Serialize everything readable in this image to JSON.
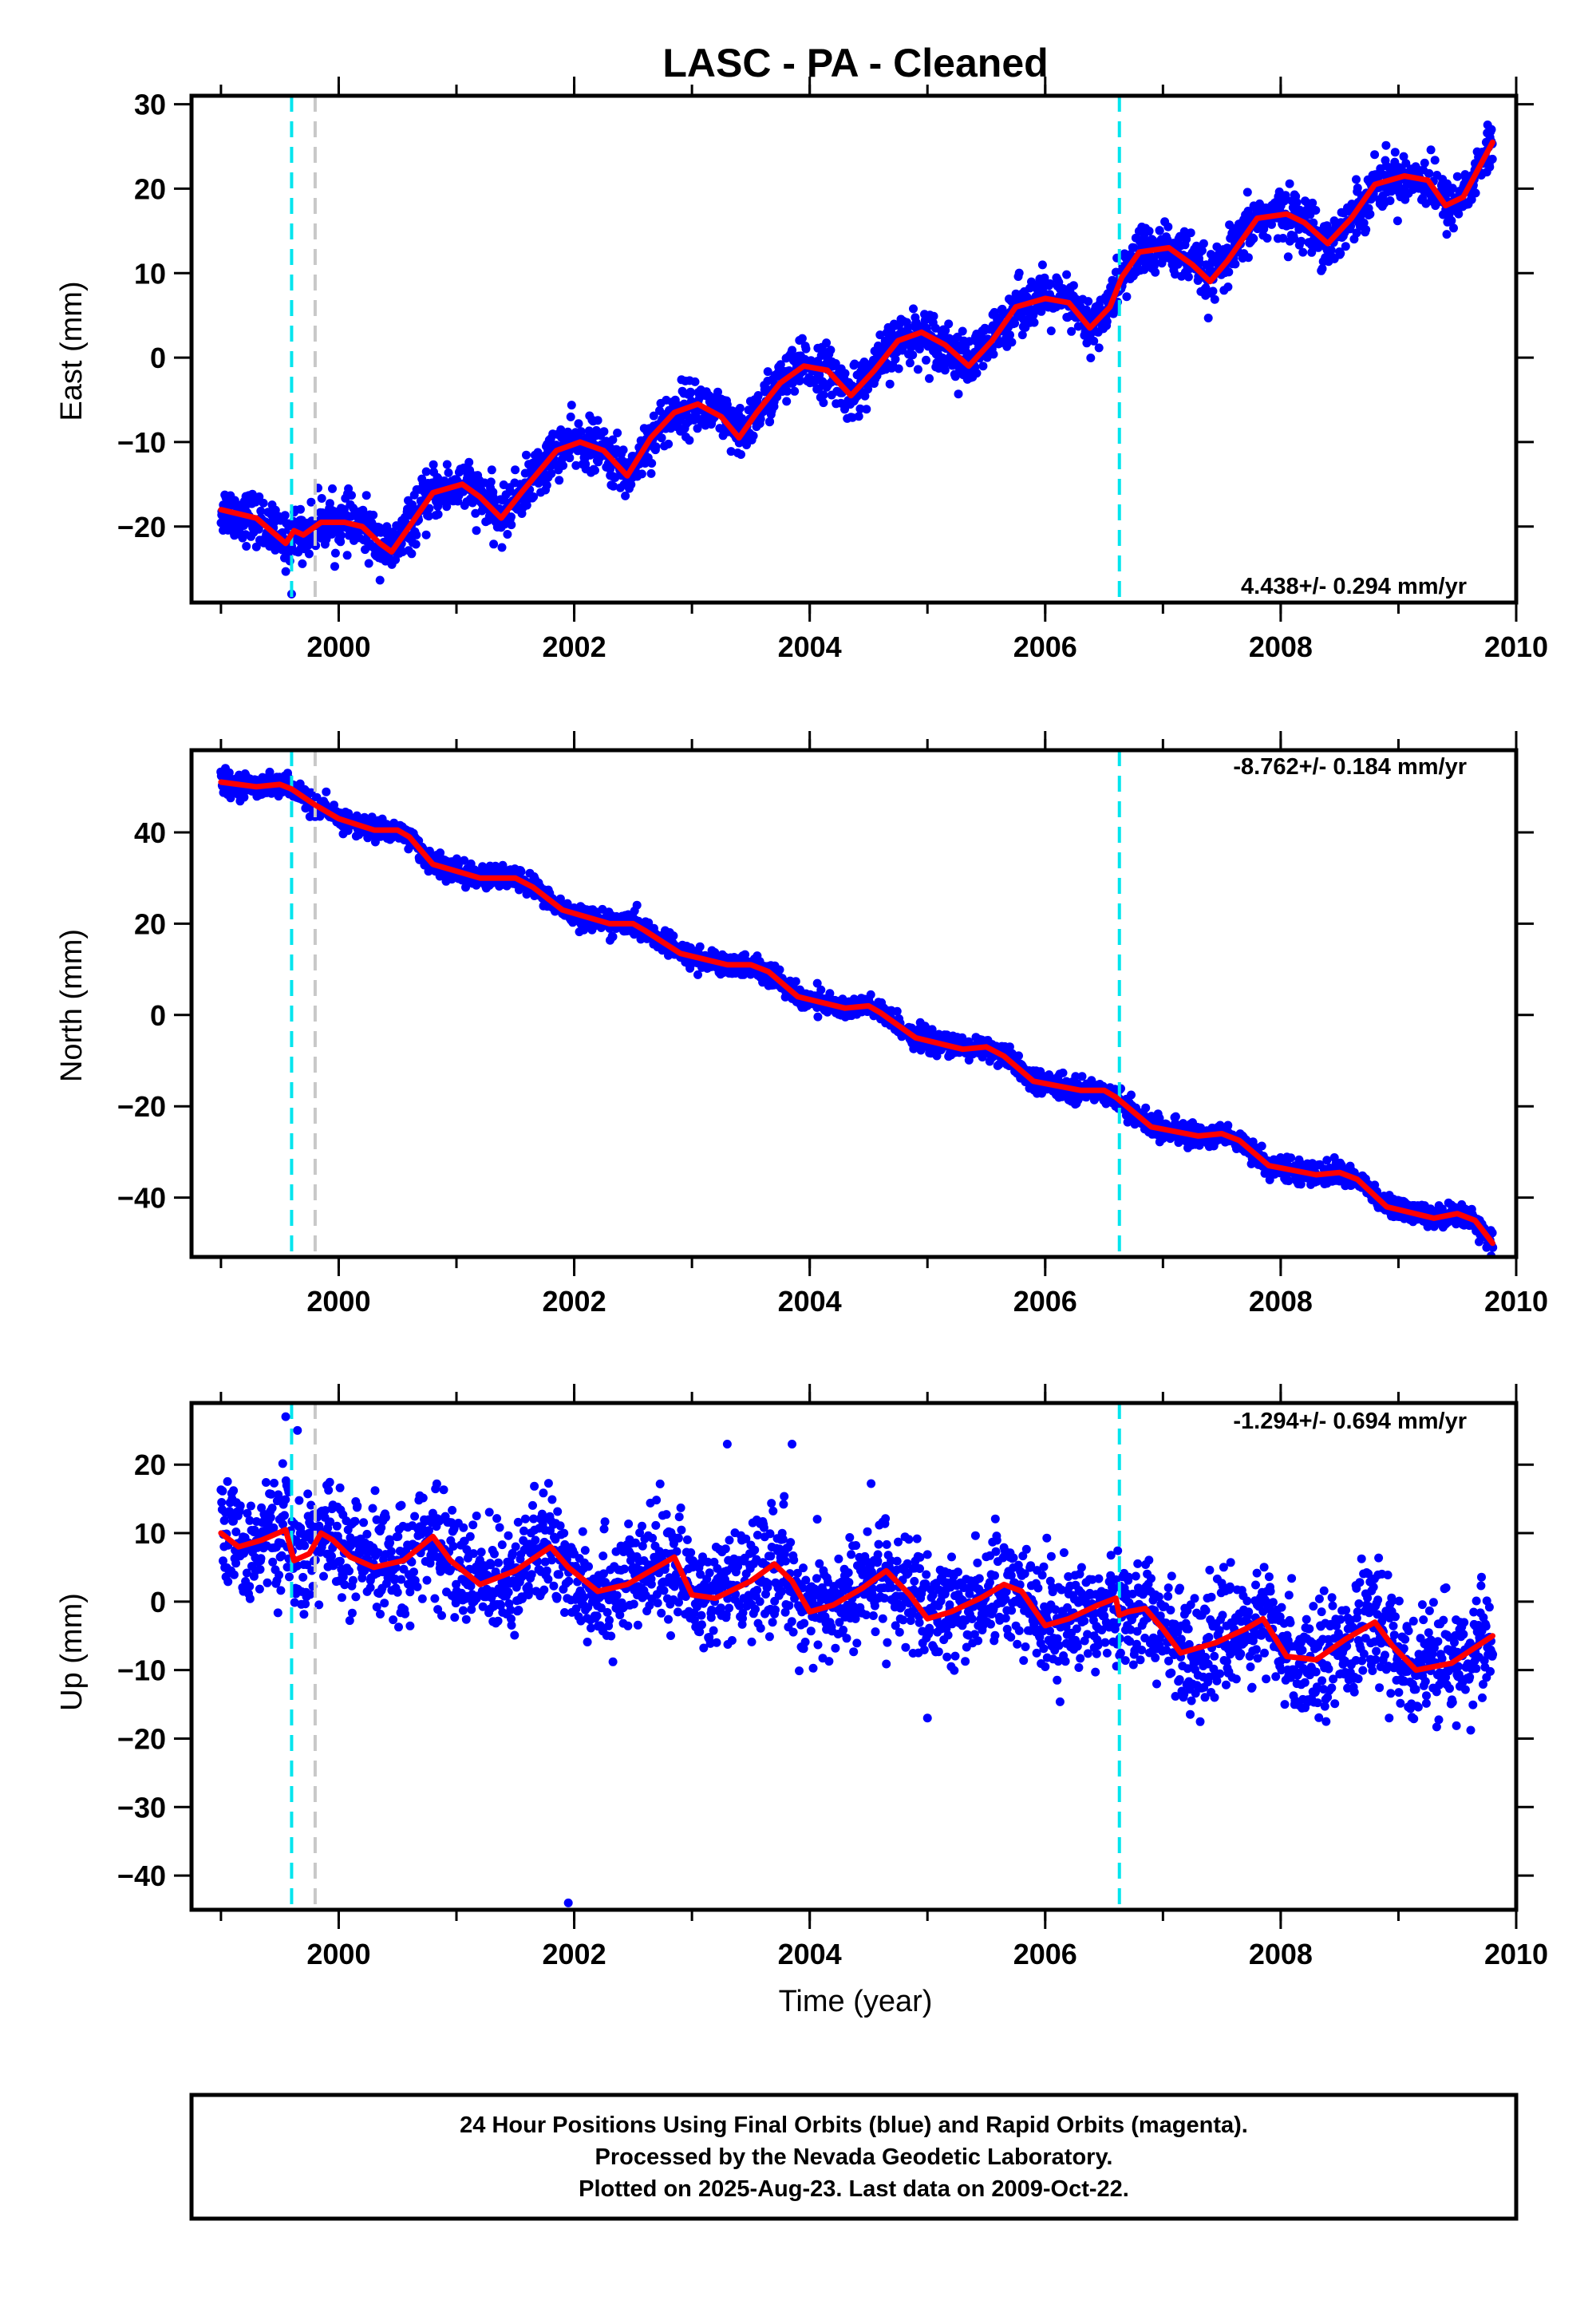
{
  "title": "LASC  - PA - Cleaned",
  "xlabel": "Time (year)",
  "footer": {
    "line1": "24 Hour Positions Using Final Orbits (blue) and Rapid Orbits (magenta).",
    "line2": "Processed by the Nevada Geodetic Laboratory.",
    "line3": "Plotted on 2025-Aug-23. Last data on 2009-Oct-22."
  },
  "colors": {
    "points": "#0000ff",
    "model": "#ff0000",
    "offset_equipment": "#00e5ee",
    "offset_other": "#c8c8c8",
    "frame": "#000000"
  },
  "chart_data": [
    {
      "type": "scatter",
      "component": "east",
      "ylabel": "East (mm)",
      "rate_label": "4.438+/- 0.294 mm/yr",
      "rate_position": "bottom-right",
      "xlim": [
        1998.75,
        2010.0
      ],
      "ylim": [
        -29,
        31
      ],
      "xticks": [
        2000,
        2002,
        2004,
        2006,
        2008,
        2010
      ],
      "yticks": [
        -20,
        -10,
        0,
        10,
        20,
        30
      ],
      "offsets_equipment": [
        1999.6,
        2006.63
      ],
      "offsets_other": [
        1999.8
      ],
      "noise": 1.5,
      "outliers": [
        [
          1999.6,
          -28
        ]
      ],
      "model_x": [
        1999.0,
        1999.3,
        1999.55,
        1999.62,
        1999.7,
        1999.85,
        2000.05,
        2000.2,
        2000.35,
        2000.45,
        2000.6,
        2000.8,
        2001.05,
        2001.2,
        2001.38,
        2001.55,
        2001.85,
        2002.05,
        2002.25,
        2002.45,
        2002.65,
        2002.85,
        2003.05,
        2003.25,
        2003.4,
        2003.55,
        2003.75,
        2003.95,
        2004.15,
        2004.35,
        2004.55,
        2004.75,
        2004.95,
        2005.15,
        2005.35,
        2005.55,
        2005.75,
        2006.0,
        2006.2,
        2006.38,
        2006.55,
        2006.65,
        2006.8,
        2007.05,
        2007.25,
        2007.4,
        2007.55,
        2007.8,
        2008.05,
        2008.2,
        2008.4,
        2008.6,
        2008.8,
        2009.05,
        2009.25,
        2009.4,
        2009.55,
        2009.8
      ],
      "model_y": [
        -18.0,
        -19.0,
        -22.0,
        -20.5,
        -21.0,
        -19.5,
        -19.5,
        -20.0,
        -22.0,
        -23.0,
        -20.0,
        -16.0,
        -15.0,
        -16.5,
        -19.0,
        -16.0,
        -11.0,
        -10.0,
        -11.0,
        -14.0,
        -9.5,
        -6.5,
        -5.5,
        -7.0,
        -9.5,
        -6.5,
        -3.0,
        -1.0,
        -1.5,
        -4.5,
        -1.5,
        2.0,
        3.0,
        1.5,
        -1.0,
        2.0,
        6.0,
        7.0,
        6.5,
        3.5,
        6.0,
        9.5,
        12.5,
        13.0,
        11.0,
        9.0,
        11.5,
        16.5,
        17.0,
        16.0,
        13.5,
        16.5,
        20.5,
        21.5,
        21.0,
        18.0,
        19.0,
        25.5
      ]
    },
    {
      "type": "scatter",
      "component": "north",
      "ylabel": "North (mm)",
      "rate_label": "-8.762+/- 0.184 mm/yr",
      "rate_position": "top-right",
      "xlim": [
        1998.75,
        2010.0
      ],
      "ylim": [
        -53,
        58
      ],
      "xticks": [
        2000,
        2002,
        2004,
        2006,
        2008,
        2010
      ],
      "yticks": [
        -40,
        -20,
        0,
        20,
        40
      ],
      "offsets_equipment": [
        1999.6,
        2006.63
      ],
      "offsets_other": [
        1999.8
      ],
      "noise": 1.2,
      "outliers": [],
      "model_x": [
        1999.0,
        1999.3,
        1999.5,
        1999.6,
        1999.8,
        2000.0,
        2000.3,
        2000.5,
        2000.6,
        2000.8,
        2001.2,
        2001.5,
        2001.65,
        2001.9,
        2002.3,
        2002.5,
        2002.6,
        2002.9,
        2003.3,
        2003.5,
        2003.65,
        2003.9,
        2004.3,
        2004.5,
        2004.6,
        2004.9,
        2005.3,
        2005.5,
        2005.65,
        2005.9,
        2006.3,
        2006.5,
        2006.6,
        2006.9,
        2007.3,
        2007.5,
        2007.65,
        2007.9,
        2008.3,
        2008.5,
        2008.65,
        2008.9,
        2009.3,
        2009.5,
        2009.65,
        2009.8
      ],
      "model_y": [
        51.0,
        50.0,
        50.5,
        49.5,
        46.0,
        43.0,
        40.5,
        40.5,
        39.0,
        33.0,
        30.0,
        30.0,
        28.0,
        23.0,
        20.0,
        20.0,
        18.5,
        13.5,
        11.0,
        11.0,
        9.5,
        4.0,
        1.5,
        2.0,
        0.5,
        -5.0,
        -7.5,
        -7.0,
        -9.0,
        -14.5,
        -16.5,
        -16.5,
        -18.0,
        -24.5,
        -26.5,
        -26.0,
        -27.5,
        -33.0,
        -35.0,
        -34.5,
        -36.0,
        -42.0,
        -44.5,
        -43.5,
        -45.0,
        -50.0
      ]
    },
    {
      "type": "scatter",
      "component": "up",
      "ylabel": "Up (mm)",
      "rate_label": "-1.294+/- 0.694 mm/yr",
      "rate_position": "top-right",
      "xlim": [
        1998.75,
        2010.0
      ],
      "ylim": [
        -45,
        29
      ],
      "xticks": [
        2000,
        2002,
        2004,
        2006,
        2008,
        2010
      ],
      "yticks": [
        -40,
        -30,
        -20,
        -10,
        0,
        10,
        20
      ],
      "offsets_equipment": [
        1999.6,
        2006.63
      ],
      "offsets_other": [
        1999.8
      ],
      "noise": 4.0,
      "outliers": [
        [
          1999.55,
          27
        ],
        [
          1999.65,
          25
        ],
        [
          2001.95,
          -44
        ],
        [
          2003.3,
          23
        ],
        [
          2003.85,
          23
        ],
        [
          2005.0,
          -17
        ]
      ],
      "model_x": [
        1999.0,
        1999.15,
        1999.35,
        1999.55,
        1999.62,
        1999.75,
        1999.85,
        1999.95,
        2000.1,
        2000.3,
        2000.55,
        2000.8,
        2000.95,
        2001.2,
        2001.5,
        2001.8,
        2001.95,
        2002.2,
        2002.45,
        2002.7,
        2002.85,
        2003.0,
        2003.2,
        2003.5,
        2003.7,
        2003.85,
        2004.0,
        2004.2,
        2004.45,
        2004.65,
        2004.85,
        2005.0,
        2005.2,
        2005.45,
        2005.65,
        2005.8,
        2006.0,
        2006.2,
        2006.45,
        2006.6,
        2006.63,
        2006.7,
        2006.85,
        2007.0,
        2007.15,
        2007.45,
        2007.7,
        2007.85,
        2008.05,
        2008.3,
        2008.55,
        2008.8,
        2008.95,
        2009.15,
        2009.45,
        2009.8
      ],
      "model_y": [
        10.0,
        8.0,
        9.0,
        10.5,
        6.0,
        7.0,
        10.0,
        9.0,
        6.5,
        5.0,
        6.0,
        9.5,
        6.0,
        2.5,
        4.5,
        8.0,
        5.0,
        1.5,
        2.5,
        5.0,
        6.5,
        1.0,
        0.5,
        3.0,
        5.5,
        3.0,
        -1.5,
        -0.5,
        2.0,
        4.5,
        1.0,
        -2.5,
        -1.5,
        0.5,
        2.5,
        1.5,
        -3.5,
        -2.5,
        -0.5,
        0.5,
        -2.0,
        -1.5,
        -1.0,
        -4.0,
        -7.5,
        -6.0,
        -4.0,
        -2.5,
        -8.0,
        -8.5,
        -5.5,
        -3.0,
        -6.5,
        -10.0,
        -9.0,
        -5.0
      ]
    }
  ]
}
